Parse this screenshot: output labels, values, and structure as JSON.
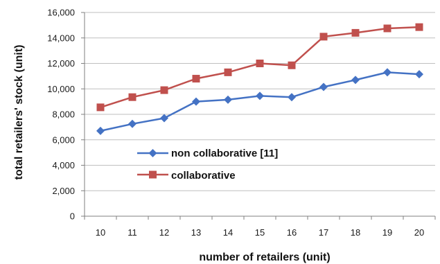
{
  "chart_data": {
    "type": "line",
    "xlabel": "number of retailers (unit)",
    "ylabel": "total retailers' stock (unit)",
    "x": [
      10,
      11,
      12,
      13,
      14,
      15,
      16,
      17,
      18,
      19,
      20
    ],
    "x_tick_labels": [
      "10",
      "11",
      "12",
      "13",
      "14",
      "15",
      "16",
      "17",
      "18",
      "19",
      "20"
    ],
    "ylim": [
      0,
      16000
    ],
    "y_ticks": [
      0,
      2000,
      4000,
      6000,
      8000,
      10000,
      12000,
      14000,
      16000
    ],
    "y_tick_labels": [
      "0",
      "2,000",
      "4,000",
      "6,000",
      "8,000",
      "10,000",
      "12,000",
      "14,000",
      "16,000"
    ],
    "grid": "horizontal",
    "legend_position": "inside-lower-left",
    "series": [
      {
        "name": "non collaborative [11]",
        "color": "#4472c4",
        "marker": "diamond",
        "values": [
          6700,
          7250,
          7700,
          9000,
          9150,
          9450,
          9350,
          10150,
          10700,
          11300,
          11150
        ]
      },
      {
        "name": "collaborative",
        "color": "#c0504d",
        "marker": "square",
        "values": [
          8550,
          9350,
          9900,
          10800,
          11300,
          12000,
          11850,
          14100,
          14400,
          14750,
          14850
        ]
      }
    ]
  }
}
